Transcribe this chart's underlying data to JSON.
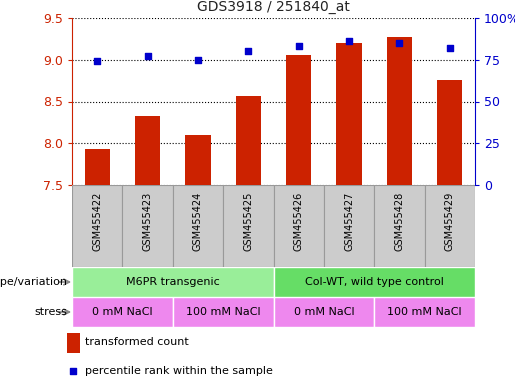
{
  "title": "GDS3918 / 251840_at",
  "samples": [
    "GSM455422",
    "GSM455423",
    "GSM455424",
    "GSM455425",
    "GSM455426",
    "GSM455427",
    "GSM455428",
    "GSM455429"
  ],
  "bar_values": [
    7.93,
    8.33,
    8.1,
    8.57,
    9.06,
    9.2,
    9.27,
    8.76
  ],
  "dot_values": [
    74,
    77,
    75,
    80,
    83,
    86,
    85,
    82
  ],
  "ylim_left": [
    7.5,
    9.5
  ],
  "ylim_right": [
    0,
    100
  ],
  "yticks_left": [
    7.5,
    8.0,
    8.5,
    9.0,
    9.5
  ],
  "yticks_right": [
    0,
    25,
    50,
    75,
    100
  ],
  "ytick_labels_right": [
    "0",
    "25",
    "50",
    "75",
    "100%"
  ],
  "bar_color": "#cc2200",
  "dot_color": "#0000cc",
  "bar_bottom": 7.5,
  "genotype_groups": [
    {
      "label": "M6PR transgenic",
      "start": 0,
      "end": 4,
      "color": "#99ee99"
    },
    {
      "label": "Col-WT, wild type control",
      "start": 4,
      "end": 8,
      "color": "#66dd66"
    }
  ],
  "stress_groups": [
    {
      "label": "0 mM NaCl",
      "start": 0,
      "end": 2,
      "color": "#ee88ee"
    },
    {
      "label": "100 mM NaCl",
      "start": 2,
      "end": 4,
      "color": "#ee88ee"
    },
    {
      "label": "0 mM NaCl",
      "start": 4,
      "end": 6,
      "color": "#ee88ee"
    },
    {
      "label": "100 mM NaCl",
      "start": 6,
      "end": 8,
      "color": "#ee88ee"
    }
  ],
  "legend_bar_label": "transformed count",
  "legend_dot_label": "percentile rank within the sample",
  "xlabel_genotype": "genotype/variation",
  "xlabel_stress": "stress",
  "title_color": "#222222",
  "left_axis_color": "#cc2200",
  "right_axis_color": "#0000cc",
  "sample_box_color": "#cccccc",
  "sample_box_edge": "#999999"
}
